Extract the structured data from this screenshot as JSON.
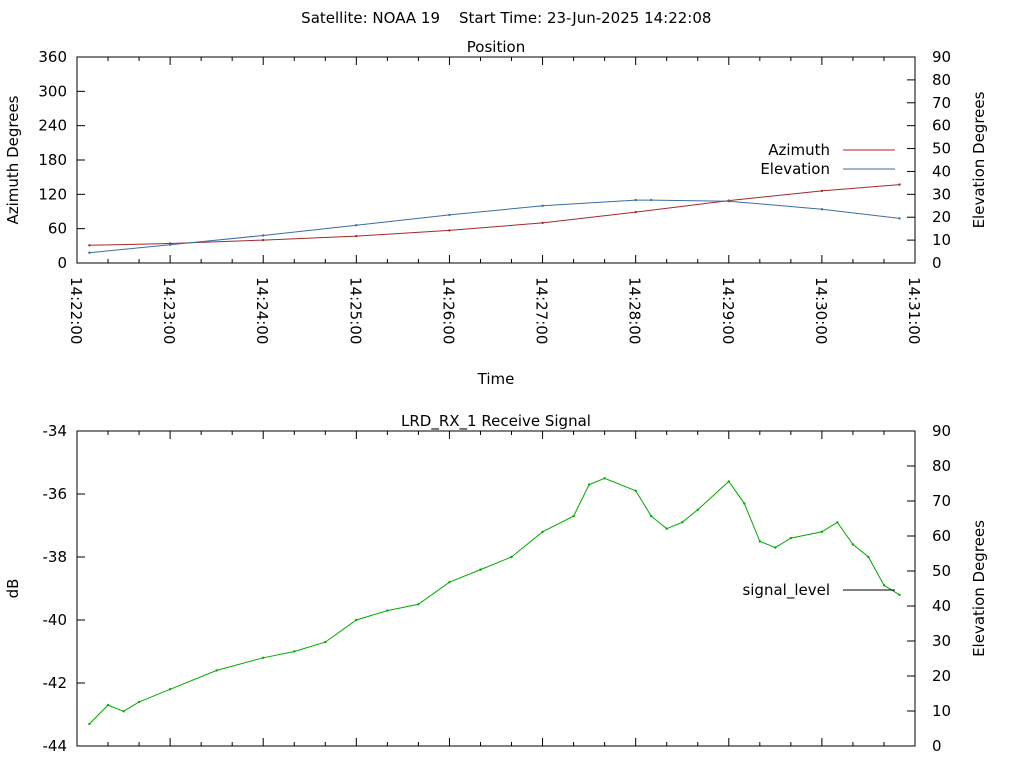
{
  "header": {
    "satellite_label": "Satellite: NOAA 19",
    "start_label": "Start Time: 23-Jun-2025 14:22:08"
  },
  "chart_data": [
    {
      "type": "line",
      "title": "Position",
      "xlabel": "Time",
      "ylabel": "Azimuth Degrees",
      "y2label": "Elevation Degrees",
      "x_ticks": [
        "14:22:00",
        "14:23:00",
        "14:24:00",
        "14:25:00",
        "14:26:00",
        "14:27:00",
        "14:28:00",
        "14:29:00",
        "14:30:00",
        "14:31:00"
      ],
      "xlim": [
        "14:22:00",
        "14:31:00"
      ],
      "ylim": [
        0,
        360
      ],
      "y_ticks": [
        0,
        60,
        120,
        180,
        240,
        300,
        360
      ],
      "y2lim": [
        0,
        90
      ],
      "y2_ticks": [
        0,
        10,
        20,
        30,
        40,
        50,
        60,
        70,
        80,
        90
      ],
      "legend": "right",
      "series": [
        {
          "name": "Azimuth",
          "axis": "y",
          "color": "#a52a2a",
          "x": [
            "14:22:08",
            "14:23:00",
            "14:24:00",
            "14:25:00",
            "14:26:00",
            "14:27:00",
            "14:28:00",
            "14:29:00",
            "14:30:00",
            "14:30:50"
          ],
          "y": [
            31,
            34,
            40,
            47,
            57,
            70,
            89,
            109,
            126,
            137
          ]
        },
        {
          "name": "Elevation",
          "axis": "y2",
          "color": "#3a6ea5",
          "x": [
            "14:22:08",
            "14:23:00",
            "14:24:00",
            "14:25:00",
            "14:26:00",
            "14:27:00",
            "14:28:00",
            "14:28:10",
            "14:29:00",
            "14:30:00",
            "14:30:50"
          ],
          "y": [
            4.5,
            8,
            12,
            16.5,
            21,
            25,
            27.5,
            27.5,
            27,
            23.5,
            19.5
          ]
        }
      ]
    },
    {
      "type": "line",
      "title": "LRD_RX_1 Receive Signal",
      "ylabel": "dB",
      "y2label": "Elevation Degrees",
      "xlim": [
        "14:22:00",
        "14:31:00"
      ],
      "ylim": [
        -44,
        -34
      ],
      "y_ticks": [
        -44,
        -42,
        -40,
        -38,
        -36,
        -34
      ],
      "y2lim": [
        0,
        90
      ],
      "y2_ticks": [
        0,
        10,
        20,
        30,
        40,
        50,
        60,
        70,
        80,
        90
      ],
      "legend": "right",
      "series": [
        {
          "name": "signal_level",
          "axis": "y",
          "color": "#00aa00",
          "x": [
            "14:22:08",
            "14:22:20",
            "14:22:30",
            "14:22:40",
            "14:23:00",
            "14:23:30",
            "14:24:00",
            "14:24:20",
            "14:24:40",
            "14:25:00",
            "14:25:20",
            "14:25:40",
            "14:26:00",
            "14:26:20",
            "14:26:40",
            "14:27:00",
            "14:27:20",
            "14:27:30",
            "14:27:40",
            "14:28:00",
            "14:28:10",
            "14:28:20",
            "14:28:30",
            "14:28:40",
            "14:29:00",
            "14:29:10",
            "14:29:20",
            "14:29:30",
            "14:29:40",
            "14:30:00",
            "14:30:10",
            "14:30:20",
            "14:30:30",
            "14:30:40",
            "14:30:50"
          ],
          "y": [
            -43.3,
            -42.7,
            -42.9,
            -42.6,
            -42.2,
            -41.6,
            -41.2,
            -41.0,
            -40.7,
            -40.0,
            -39.7,
            -39.5,
            -38.8,
            -38.4,
            -38.0,
            -37.2,
            -36.7,
            -35.7,
            -35.5,
            -35.9,
            -36.7,
            -37.1,
            -36.9,
            -36.5,
            -35.6,
            -36.3,
            -37.5,
            -37.7,
            -37.4,
            -37.2,
            -36.9,
            -37.6,
            -38.0,
            -38.9,
            -39.2
          ]
        }
      ]
    }
  ]
}
